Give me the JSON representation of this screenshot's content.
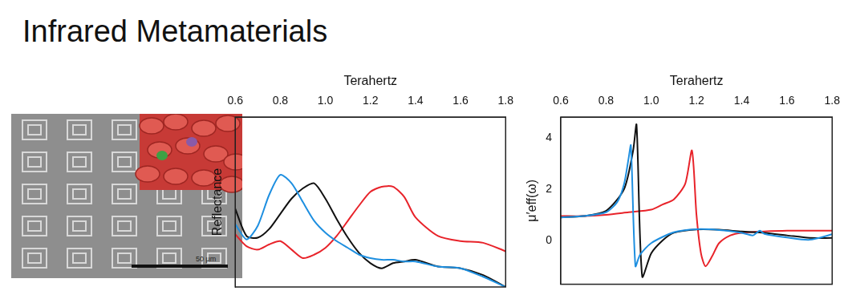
{
  "page": {
    "title": "Infrared Metamaterials"
  },
  "image": {
    "scale_bar": "50 μm"
  },
  "chart_data": [
    {
      "type": "line",
      "x_label": "Terahertz",
      "y_label": "Reflectance",
      "xlim": [
        0.6,
        1.8
      ],
      "xticks": [
        0.6,
        0.8,
        {
          "value": 1,
          "label": "1.0"
        },
        1.2,
        1.4,
        1.6,
        1.8
      ],
      "ylim": [
        0,
        1
      ],
      "tick_labels": "x",
      "grid": false,
      "series": [
        {
          "color": "#1e8fe0",
          "x": [
            0.6,
            0.65,
            0.7,
            0.75,
            0.8,
            0.85,
            0.9,
            0.95,
            1.0,
            1.05,
            1.1,
            1.15,
            1.2,
            1.25,
            1.3,
            1.35,
            1.4,
            1.5,
            1.6,
            1.7,
            1.8
          ],
          "values": [
            0.37,
            0.28,
            0.36,
            0.54,
            0.66,
            0.61,
            0.5,
            0.39,
            0.32,
            0.27,
            0.23,
            0.19,
            0.17,
            0.16,
            0.16,
            0.15,
            0.15,
            0.12,
            0.11,
            0.06,
            0.0
          ]
        },
        {
          "color": "#111111",
          "x": [
            0.6,
            0.65,
            0.7,
            0.75,
            0.8,
            0.85,
            0.9,
            0.95,
            1.0,
            1.05,
            1.1,
            1.15,
            1.2,
            1.25,
            1.3,
            1.35,
            1.4,
            1.5,
            1.6,
            1.7,
            1.8
          ],
          "values": [
            0.46,
            0.3,
            0.29,
            0.34,
            0.43,
            0.52,
            0.58,
            0.61,
            0.52,
            0.4,
            0.29,
            0.2,
            0.14,
            0.11,
            0.14,
            0.15,
            0.16,
            0.12,
            0.11,
            0.07,
            0.0
          ]
        },
        {
          "color": "#e8232a",
          "x": [
            0.6,
            0.65,
            0.7,
            0.75,
            0.8,
            0.85,
            0.9,
            0.95,
            1.0,
            1.05,
            1.1,
            1.15,
            1.2,
            1.25,
            1.3,
            1.35,
            1.4,
            1.5,
            1.6,
            1.7,
            1.8
          ],
          "values": [
            0.31,
            0.24,
            0.22,
            0.25,
            0.27,
            0.22,
            0.17,
            0.19,
            0.23,
            0.3,
            0.39,
            0.48,
            0.56,
            0.59,
            0.59,
            0.53,
            0.41,
            0.3,
            0.27,
            0.26,
            0.21
          ]
        }
      ]
    },
    {
      "type": "line",
      "x_label": "Terahertz",
      "y_label": "μ′eff(ω)",
      "xlim": [
        0.6,
        1.8
      ],
      "xticks": [
        0.6,
        0.8,
        {
          "value": 1,
          "label": "1.0"
        },
        1.2,
        1.4,
        1.6,
        1.8
      ],
      "ylim": [
        -1.7,
        4.8
      ],
      "yticks": [
        0,
        2,
        4
      ],
      "grid": false,
      "series": [
        {
          "color": "#1e8fe0",
          "x": [
            0.6,
            0.7,
            0.8,
            0.85,
            0.88,
            0.9,
            0.91,
            0.93,
            0.95,
            1.0,
            1.1,
            1.2,
            1.3,
            1.4,
            1.45,
            1.48,
            1.5,
            1.6,
            1.7,
            1.8
          ],
          "values": [
            0.9,
            0.95,
            1.1,
            1.5,
            2.2,
            3.2,
            3.7,
            -1.0,
            -0.56,
            -0.1,
            0.32,
            0.44,
            0.41,
            0.3,
            0.2,
            0.38,
            0.26,
            0.12,
            0.03,
            0.24
          ]
        },
        {
          "color": "#111111",
          "x": [
            0.6,
            0.7,
            0.8,
            0.88,
            0.92,
            0.935,
            0.96,
            1.0,
            1.05,
            1.1,
            1.2,
            1.3,
            1.4,
            1.5,
            1.6,
            1.7,
            1.8
          ],
          "values": [
            0.9,
            0.95,
            1.15,
            2.0,
            3.5,
            4.5,
            -1.4,
            -0.5,
            0.0,
            0.3,
            0.43,
            0.42,
            0.35,
            0.3,
            0.2,
            0.1,
            0.1
          ]
        },
        {
          "color": "#e8232a",
          "x": [
            0.6,
            0.7,
            0.8,
            0.9,
            1.0,
            1.05,
            1.1,
            1.15,
            1.18,
            1.2,
            1.22,
            1.24,
            1.27,
            1.3,
            1.35,
            1.4,
            1.5,
            1.6,
            1.7,
            1.8
          ],
          "values": [
            0.95,
            0.95,
            1.0,
            1.1,
            1.2,
            1.4,
            1.6,
            2.2,
            3.5,
            1.0,
            -0.5,
            -1.0,
            -0.6,
            -0.1,
            0.2,
            0.3,
            0.35,
            0.38,
            0.38,
            0.38
          ]
        }
      ]
    }
  ]
}
